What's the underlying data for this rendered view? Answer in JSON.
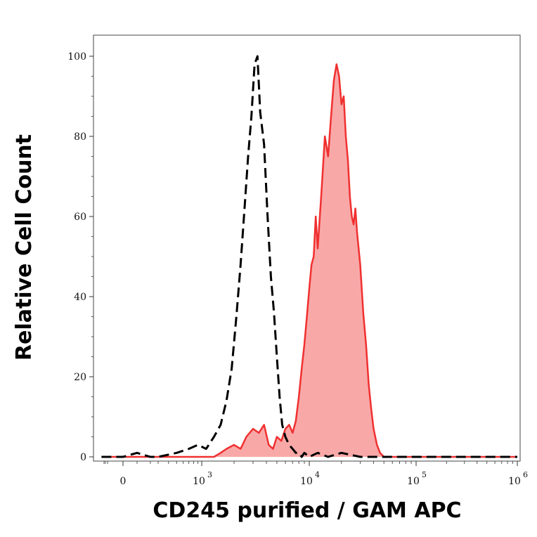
{
  "chart_data": {
    "type": "area",
    "xlabel": "CD245 purified / GAM APC",
    "ylabel": "Relative Cell Count",
    "x_scale": "biexponential",
    "ylim": [
      0,
      100
    ],
    "y_ticks": [
      {
        "value": 0,
        "label": "0"
      },
      {
        "value": 20,
        "label": "20"
      },
      {
        "value": 40,
        "label": "40"
      },
      {
        "value": 60,
        "label": "60"
      },
      {
        "value": 80,
        "label": "80"
      },
      {
        "value": 100,
        "label": "100"
      }
    ],
    "x_ticks": [
      {
        "value": 0,
        "base": "0",
        "exp": ""
      },
      {
        "value": 1000,
        "base": "10",
        "exp": "3"
      },
      {
        "value": 10000,
        "base": "10",
        "exp": "4"
      },
      {
        "value": 100000,
        "base": "10",
        "exp": "5"
      },
      {
        "value": 1000000,
        "base": "10",
        "exp": "6"
      }
    ],
    "series": [
      {
        "style": "dashed",
        "color": "#000000",
        "x": [
          -400,
          -200,
          0,
          100,
          200,
          300,
          500,
          700,
          900,
          1100,
          1300,
          1500,
          1700,
          1900,
          2100,
          2300,
          2500,
          2700,
          2900,
          3100,
          3300,
          3500,
          3800,
          4100,
          4400,
          4700,
          5000,
          5300,
          5600,
          6000,
          6500,
          7000,
          7500,
          8000,
          8500,
          9000,
          10000,
          12000,
          15000,
          20000,
          30000,
          50000,
          100000,
          300000,
          1000000
        ],
        "y": [
          0,
          0,
          0,
          1,
          0,
          0,
          1,
          2,
          3,
          2,
          5,
          8,
          14,
          22,
          35,
          48,
          62,
          75,
          85,
          98,
          100,
          86,
          78,
          60,
          45,
          36,
          25,
          15,
          8,
          5,
          3,
          2,
          1,
          1,
          0,
          1,
          0,
          1,
          0,
          1,
          0,
          0,
          0,
          0,
          0
        ]
      },
      {
        "style": "filled",
        "color": "#f03030",
        "fill": "#f9a8a8",
        "x": [
          -400,
          0,
          500,
          1000,
          1300,
          1500,
          1700,
          2000,
          2300,
          2600,
          3000,
          3400,
          3800,
          4200,
          4600,
          5000,
          5500,
          6000,
          6500,
          7000,
          7500,
          8000,
          8500,
          9000,
          9500,
          10000,
          10500,
          11000,
          11500,
          12000,
          13000,
          14000,
          15000,
          16000,
          17000,
          18000,
          19000,
          20000,
          21000,
          22000,
          23000,
          24000,
          25000,
          26000,
          27000,
          28000,
          30000,
          32000,
          34000,
          36000,
          38000,
          40000,
          43000,
          46000,
          50000,
          60000,
          100000,
          300000,
          1000000
        ],
        "y": [
          0,
          0,
          0,
          0,
          0,
          1,
          2,
          3,
          2,
          5,
          7,
          6,
          8,
          3,
          2,
          5,
          4,
          7,
          8,
          6,
          9,
          15,
          22,
          28,
          35,
          42,
          48,
          50,
          60,
          52,
          66,
          80,
          75,
          85,
          94,
          98,
          95,
          88,
          90,
          80,
          74,
          65,
          60,
          58,
          62,
          56,
          48,
          36,
          28,
          18,
          12,
          7,
          3,
          1,
          0,
          0,
          0,
          0,
          0
        ]
      }
    ]
  }
}
